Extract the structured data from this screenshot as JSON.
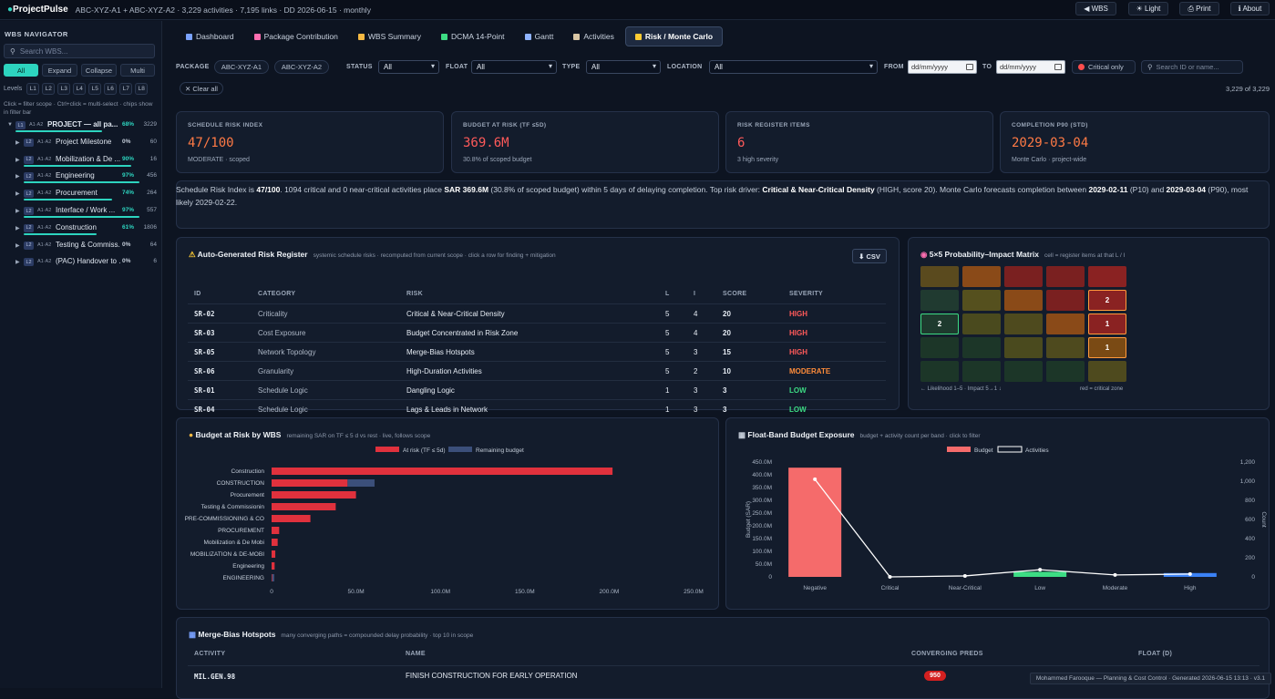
{
  "header": {
    "brand": "ProjectPulse",
    "meta": "ABC-XYZ-A1 + ABC-XYZ-A2 · 3,229 activities · 7,195 links · DD 2026-06-15 · monthly",
    "buttons": {
      "wbs": "◀ WBS",
      "light": "☀ Light",
      "print": "⎙ Print",
      "about": "ℹ About"
    }
  },
  "sidebar": {
    "title": "WBS NAVIGATOR",
    "search_placeholder": "Search WBS...",
    "buttons": [
      "All",
      "Expand",
      "Collapse",
      "Multi"
    ],
    "levels_label": "Levels",
    "levels": [
      "L1",
      "L2",
      "L3",
      "L4",
      "L5",
      "L6",
      "L7",
      "L8"
    ],
    "hint": "Click = filter scope · Ctrl+click = multi-select · chips show in filter bar",
    "tree": [
      {
        "badge": "L1",
        "code": "A1·A2",
        "name": "PROJECT — all pa...",
        "pct": "68%",
        "pct_val": 0.68,
        "count": "3229",
        "pct_color": "#2dd4bf",
        "level": 1
      },
      {
        "badge": "L2",
        "code": "A1·A2",
        "name": "Project Milestone",
        "pct": "0%",
        "pct_val": 0,
        "count": "60",
        "pct_color": "#c5ceda",
        "level": 2
      },
      {
        "badge": "L2",
        "code": "A1·A2",
        "name": "Mobilization & De ...",
        "pct": "90%",
        "pct_val": 0.9,
        "count": "16",
        "pct_color": "#2dd4bf",
        "level": 2
      },
      {
        "badge": "L2",
        "code": "A1·A2",
        "name": "Engineering",
        "pct": "97%",
        "pct_val": 0.97,
        "count": "456",
        "pct_color": "#2dd4bf",
        "level": 2
      },
      {
        "badge": "L2",
        "code": "A1·A2",
        "name": "Procurement",
        "pct": "74%",
        "pct_val": 0.74,
        "count": "264",
        "pct_color": "#2dd4bf",
        "level": 2
      },
      {
        "badge": "L2",
        "code": "A1·A2",
        "name": "Interface / Work ...",
        "pct": "97%",
        "pct_val": 0.97,
        "count": "557",
        "pct_color": "#2dd4bf",
        "level": 2
      },
      {
        "badge": "L2",
        "code": "A1·A2",
        "name": "Construction",
        "pct": "61%",
        "pct_val": 0.61,
        "count": "1806",
        "pct_color": "#2dd4bf",
        "level": 2
      },
      {
        "badge": "L2",
        "code": "A1·A2",
        "name": "Testing & Commiss...",
        "pct": "0%",
        "pct_val": 0,
        "count": "64",
        "pct_color": "#c5ceda",
        "level": 2
      },
      {
        "badge": "L2",
        "code": "A1·A2",
        "name": "(PAC) Handover to ...",
        "pct": "0%",
        "pct_val": 0,
        "count": "6",
        "pct_color": "#c5ceda",
        "level": 2
      }
    ]
  },
  "tabs": [
    {
      "label": "Dashboard",
      "icon": "chart-icon",
      "color": "#7aa2ff"
    },
    {
      "label": "Package Contribution",
      "icon": "pie-icon",
      "color": "#ff6fb1"
    },
    {
      "label": "WBS Summary",
      "icon": "folder-icon",
      "color": "#f5b942"
    },
    {
      "label": "DCMA 14-Point",
      "icon": "check-icon",
      "color": "#3ddc84"
    },
    {
      "label": "Gantt",
      "icon": "calendar-icon",
      "color": "#8fb3ff"
    },
    {
      "label": "Activities",
      "icon": "clipboard-icon",
      "color": "#d9c6a5"
    },
    {
      "label": "Risk / Monte Carlo",
      "icon": "warning-icon",
      "color": "#ffcc33",
      "active": true
    }
  ],
  "filters": {
    "package_label": "PACKAGE",
    "packages": [
      "ABC-XYZ-A1",
      "ABC-XYZ-A2"
    ],
    "status_label": "STATUS",
    "status": "All",
    "float_label": "FLOAT",
    "float": "All",
    "type_label": "TYPE",
    "type": "All",
    "location_label": "LOCATION",
    "location": "All",
    "from_label": "FROM",
    "to_label": "TO",
    "date_placeholder": "dd/mm/yyyy",
    "critical_only": "Critical only",
    "search_placeholder": "Search ID or name...",
    "clear_all": "✕ Clear all",
    "count": "3,229 of 3,229"
  },
  "kpis": [
    {
      "label": "SCHEDULE RISK INDEX",
      "value": "47/100",
      "sub": "MODERATE · scoped",
      "color": "orange"
    },
    {
      "label": "BUDGET AT RISK (TF ≤5D)",
      "value": "369.6M",
      "sub": "30.8% of scoped budget",
      "color": "red"
    },
    {
      "label": "RISK REGISTER ITEMS",
      "value": "6",
      "sub": "3 high severity",
      "color": "red"
    },
    {
      "label": "COMPLETION P90 (STD)",
      "value": "2029-03-04",
      "sub": "Monte Carlo · project-wide",
      "color": "orange"
    }
  ],
  "summary": {
    "t1": "Schedule Risk Index is ",
    "b1": "47/100",
    "t2": ". 1094 critical and 0 near-critical activities place ",
    "b2": "SAR 369.6M",
    "t3": " (30.8% of scoped budget) within 5 days of delaying completion. Top risk driver: ",
    "b3": "Critical & Near-Critical Density",
    "t4": " (HIGH, score 20). Monte Carlo forecasts completion between ",
    "b4": "2029-02-11",
    "t5": " (P10) and ",
    "b5": "2029-03-04",
    "t6": " (P90), most likely 2029-02-22."
  },
  "risk_register": {
    "title": "Auto-Generated Risk Register",
    "subtitle": "systemic schedule risks · recomputed from current scope · click a row for finding + mitigation",
    "csv": "⬇ CSV",
    "headers": [
      "ID",
      "CATEGORY",
      "RISK",
      "L",
      "I",
      "SCORE",
      "SEVERITY"
    ],
    "rows": [
      {
        "id": "SR-02",
        "category": "Criticality",
        "risk": "Critical & Near-Critical Density",
        "l": "5",
        "i": "4",
        "score": "20",
        "severity": "HIGH",
        "sev_color": "#ff5a5a"
      },
      {
        "id": "SR-03",
        "category": "Cost Exposure",
        "risk": "Budget Concentrated in Risk Zone",
        "l": "5",
        "i": "4",
        "score": "20",
        "severity": "HIGH",
        "sev_color": "#ff5a5a"
      },
      {
        "id": "SR-05",
        "category": "Network Topology",
        "risk": "Merge-Bias Hotspots",
        "l": "5",
        "i": "3",
        "score": "15",
        "severity": "HIGH",
        "sev_color": "#ff5a5a"
      },
      {
        "id": "SR-06",
        "category": "Granularity",
        "risk": "High-Duration Activities",
        "l": "5",
        "i": "2",
        "score": "10",
        "severity": "MODERATE",
        "sev_color": "#ff8c3a"
      },
      {
        "id": "SR-01",
        "category": "Schedule Logic",
        "risk": "Dangling Logic",
        "l": "1",
        "i": "3",
        "score": "3",
        "severity": "LOW",
        "sev_color": "#3ddc84"
      },
      {
        "id": "SR-04",
        "category": "Schedule Logic",
        "risk": "Lags & Leads in Network",
        "l": "1",
        "i": "3",
        "score": "3",
        "severity": "LOW",
        "sev_color": "#3ddc84"
      }
    ]
  },
  "matrix": {
    "title": "5×5 Probability–Impact Matrix",
    "subtitle": "cell = register items at that L / I",
    "cells": [
      [
        "#5a4a1e",
        "#8a4a18",
        "#7a2020",
        "#7a2020",
        "#8a2222"
      ],
      [
        "#203a30",
        "#55501e",
        "#8a4a18",
        "#7a2020",
        "#8a2222"
      ],
      [
        "#1e3a2e",
        "#4a4a1e",
        "#4e4a1e",
        "#8a4a18",
        "#8a2222"
      ],
      [
        "#1c3628",
        "#1c3628",
        "#4a4a1e",
        "#4e4a1e",
        "#7a4a14"
      ],
      [
        "#1c3628",
        "#1c3628",
        "#1c3628",
        "#1c3628",
        "#4e4a1e"
      ]
    ],
    "counts": [
      {
        "r": 1,
        "c": 4,
        "v": "2",
        "border": "#ff9a3c"
      },
      {
        "r": 2,
        "c": 0,
        "v": "2",
        "border": "#3ddc84"
      },
      {
        "r": 2,
        "c": 4,
        "v": "1",
        "border": "#ff9a3c"
      },
      {
        "r": 3,
        "c": 4,
        "v": "1",
        "border": "#ff9a3c"
      }
    ],
    "legend_left": "← Likelihood 1–5 · Impact 5→1 ↓",
    "legend_right": "red = critical zone"
  },
  "budget_chart": {
    "title": "Budget at Risk by WBS",
    "subtitle": "remaining SAR on TF ≤ 5 d vs rest · live, follows scope",
    "legend": [
      "At risk (TF ≤ 5d)",
      "Remaining budget"
    ],
    "colors": {
      "risk": "#e0313d",
      "remaining": "#3b4f7a"
    },
    "xticks": [
      "0",
      "50.0M",
      "100.0M",
      "150.0M",
      "200.0M",
      "250.0M"
    ],
    "chart_data": {
      "type": "bar",
      "orientation": "horizontal",
      "stacked": true,
      "xlim": [
        0,
        250
      ],
      "unit": "M SAR",
      "categories": [
        "Construction",
        "CONSTRUCTION",
        "Procurement",
        "Testing & Commissionin",
        "PRE-COMMISSIONING & CO",
        "PROCUREMENT",
        "Mobilization & De Mobi",
        "MOBILIZATION & DE-MOBI",
        "Engineering",
        "ENGINEERING"
      ],
      "series": [
        {
          "name": "At risk (TF ≤ 5d)",
          "values": [
            202,
            45,
            50,
            38,
            23,
            4.5,
            3.6,
            2.2,
            1.8,
            0.4
          ]
        },
        {
          "name": "Remaining budget",
          "values": [
            0,
            16,
            0,
            0,
            0,
            0,
            0,
            0,
            0,
            1.2
          ]
        }
      ]
    }
  },
  "float_chart": {
    "title": "Float-Band Budget Exposure",
    "subtitle": "budget + activity count per band · click to filter",
    "legend": [
      "Budget",
      "Activities"
    ],
    "yticks_left": [
      "0",
      "50.0M",
      "100.0M",
      "150.0M",
      "200.0M",
      "250.0M",
      "300.0M",
      "350.0M",
      "400.0M",
      "450.0M"
    ],
    "yticks_right": [
      "0",
      "200",
      "400",
      "600",
      "800",
      "1,000",
      "1,200"
    ],
    "ylabel_left": "Budget (SAR)",
    "ylabel_right": "Count",
    "chart_data": {
      "type": "bar",
      "categories": [
        "Negative",
        "Critical",
        "Near-Critical",
        "Low",
        "Moderate",
        "High"
      ],
      "ylim": [
        0,
        450
      ],
      "y2lim": [
        0,
        1200
      ],
      "series": [
        {
          "name": "Budget",
          "values": [
            428,
            0,
            0,
            20,
            0,
            15
          ]
        },
        {
          "name": "Activities",
          "values": [
            1020,
            0,
            10,
            75,
            20,
            30
          ]
        }
      ],
      "bar_colors": [
        "#f56b6b",
        "#f56b6b",
        "#f56b6b",
        "#3ddc84",
        "#f5b942",
        "#3b82f6"
      ]
    }
  },
  "merge": {
    "title": "Merge-Bias Hotspots",
    "subtitle": "many converging paths = compounded delay probability · top 10 in scope",
    "headers": [
      "ACTIVITY",
      "NAME",
      "CONVERGING PREDS",
      "FLOAT (D)"
    ],
    "rows": [
      {
        "activity": "MIL.GEN.98",
        "name": "FINISH CONSTRUCTION FOR EARLY OPERATION",
        "preds": "950",
        "float": ""
      }
    ]
  },
  "footer": "Mohammed Farooque — Planning & Cost Control · Generated 2026-06-15 13:13 · v3.1"
}
